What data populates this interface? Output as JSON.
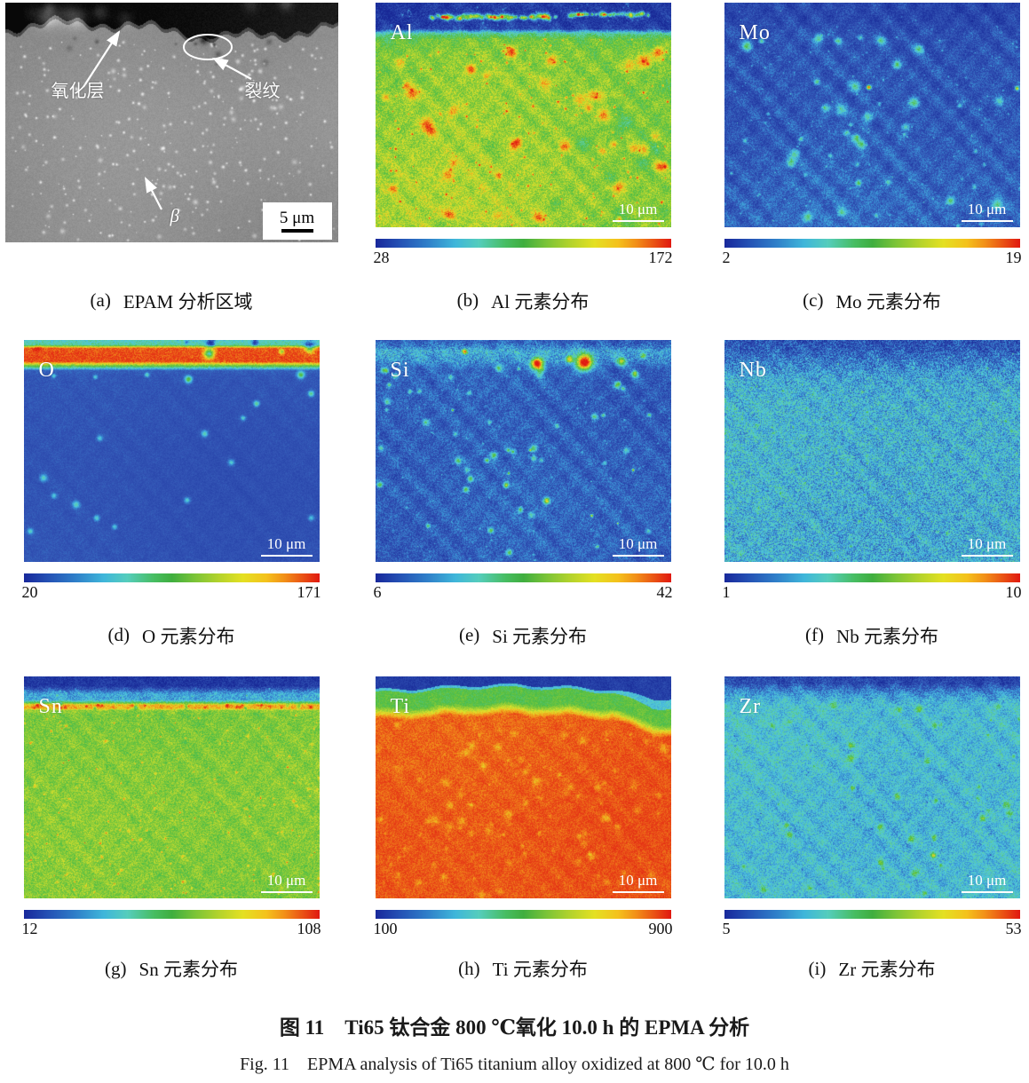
{
  "figure": {
    "title_zh": "图 11　Ti65 钛合金 800 ℃氧化 10.0 h 的 EPMA 分析",
    "title_en": "Fig. 11　EPMA analysis of Ti65 titanium alloy oxidized at 800 ℃ for 10.0 h"
  },
  "colors": {
    "colorbar_left_blue": "#18289b",
    "colorbar_mid_green": "#3fae3f",
    "colorbar_right_red": "#e01810",
    "annotation_white": "#ffffff"
  },
  "panels": [
    {
      "id": "a",
      "caption_index": "(a)",
      "caption_text": "EPAM 分析区域",
      "annotations": {
        "oxide_layer": "氧化层",
        "crack": "裂纹",
        "beta": "β",
        "scale_bar": "5 μm"
      }
    },
    {
      "id": "b",
      "label": "Al",
      "caption_index": "(b)",
      "caption_text": "Al 元素分布",
      "scale_bar": "10 μm",
      "colorbar_min": "28",
      "colorbar_max": "172"
    },
    {
      "id": "c",
      "label": "Mo",
      "caption_index": "(c)",
      "caption_text": "Mo 元素分布",
      "scale_bar": "10 μm",
      "colorbar_min": "2",
      "colorbar_max": "19"
    },
    {
      "id": "d",
      "label": "O",
      "caption_index": "(d)",
      "caption_text": "O 元素分布",
      "scale_bar": "10 μm",
      "colorbar_min": "20",
      "colorbar_max": "171"
    },
    {
      "id": "e",
      "label": "Si",
      "caption_index": "(e)",
      "caption_text": "Si 元素分布",
      "scale_bar": "10 μm",
      "colorbar_min": "6",
      "colorbar_max": "42"
    },
    {
      "id": "f",
      "label": "Nb",
      "caption_index": "(f)",
      "caption_text": "Nb 元素分布",
      "scale_bar": "10 μm",
      "colorbar_min": "1",
      "colorbar_max": "10"
    },
    {
      "id": "g",
      "label": "Sn",
      "caption_index": "(g)",
      "caption_text": "Sn 元素分布",
      "scale_bar": "10 μm",
      "colorbar_min": "12",
      "colorbar_max": "108"
    },
    {
      "id": "h",
      "label": "Ti",
      "caption_index": "(h)",
      "caption_text": "Ti 元素分布",
      "scale_bar": "10 μm",
      "colorbar_min": "100",
      "colorbar_max": "900"
    },
    {
      "id": "i",
      "label": "Zr",
      "caption_index": "(i)",
      "caption_text": "Zr 元素分布",
      "scale_bar": "10 μm",
      "colorbar_min": "5",
      "colorbar_max": "53"
    }
  ]
}
